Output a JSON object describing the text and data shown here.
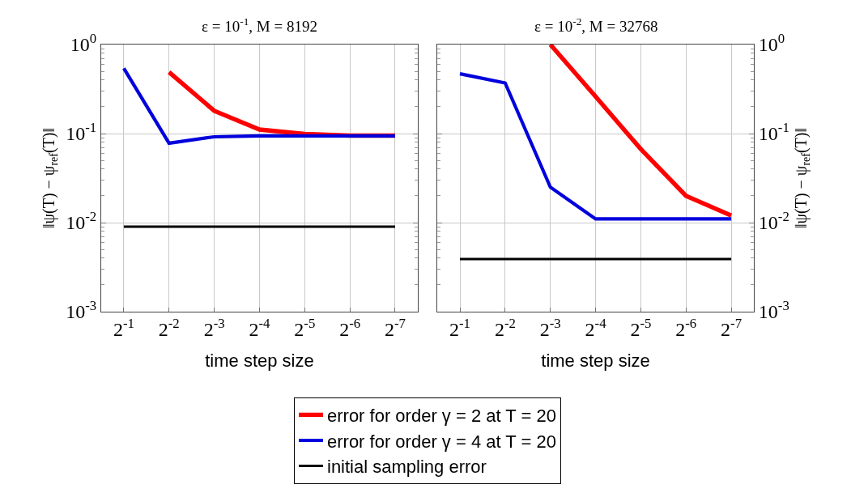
{
  "chart_data": [
    {
      "type": "line",
      "title": "ε = 10$^{-1}$, M = 8192",
      "xlabel": "time step size",
      "ylabel": "‖ψ(T) − ψ$_{ref}$(T)‖",
      "categories": [
        "2$^{-1}$",
        "2$^{-2}$",
        "2$^{-3}$",
        "2$^{-4}$",
        "2$^{-5}$",
        "2$^{-6}$",
        "2$^{-7}$"
      ],
      "series": [
        {
          "name": "error for order γ = 2 at T = 20",
          "color": "#ff0000",
          "values": [
            null,
            0.49,
            0.18,
            0.111,
            0.099,
            0.095,
            0.095
          ]
        },
        {
          "name": "error for order γ = 4 at T = 20",
          "color": "#0000dd",
          "values": [
            0.54,
            0.078,
            0.092,
            0.094,
            0.094,
            0.094,
            0.094
          ]
        },
        {
          "name": "initial sampling error",
          "color": "#000000",
          "values": [
            0.009,
            0.009,
            0.009,
            0.009,
            0.009,
            0.009,
            0.009
          ]
        }
      ],
      "log": "y",
      "ylim": [
        0.001,
        1
      ],
      "yticks": [
        {
          "value": 0.001,
          "label": "10$^{-3}$"
        },
        {
          "value": 0.01,
          "label": "10$^{-2}$"
        },
        {
          "value": 0.1,
          "label": "10$^{-1}$"
        },
        {
          "value": 1,
          "label": "10$^{0}$"
        }
      ],
      "grid": true,
      "legend": "bottom",
      "marker": "none",
      "line_style": "solid"
    },
    {
      "type": "line",
      "title": "ε = 10$^{-2}$, M = 32768",
      "xlabel": "time step size",
      "y2label": "‖ψ(T) − ψ$_{ref}$(T)‖",
      "categories": [
        "2$^{-1}$",
        "2$^{-2}$",
        "2$^{-3}$",
        "2$^{-4}$",
        "2$^{-5}$",
        "2$^{-6}$",
        "2$^{-7}$"
      ],
      "series": [
        {
          "name": "error for order γ = 2 at T = 20",
          "color": "#ff0000",
          "axis": "y2",
          "values": [
            null,
            null,
            1.0,
            0.26,
            0.067,
            0.02,
            0.012
          ]
        },
        {
          "name": "error for order γ = 4 at T = 20",
          "color": "#0000dd",
          "axis": "y2",
          "values": [
            0.47,
            0.37,
            0.025,
            0.011,
            0.011,
            0.011,
            0.011
          ]
        },
        {
          "name": "initial sampling error",
          "color": "#000000",
          "axis": "y2",
          "values": [
            0.0039,
            0.0039,
            0.0039,
            0.0039,
            0.0039,
            0.0039,
            0.0039
          ]
        }
      ],
      "log": "y2",
      "y2lim": [
        0.001,
        1
      ],
      "y2ticks": [
        {
          "value": 0.001,
          "label": "10$^{-3}$"
        },
        {
          "value": 0.01,
          "label": "10$^{-2}$"
        },
        {
          "value": 0.1,
          "label": "10$^{-1}$"
        },
        {
          "value": 1,
          "label": "10$^{0}$"
        }
      ],
      "grid": true,
      "legend": "bottom",
      "marker": "none",
      "line_style": "solid"
    }
  ]
}
